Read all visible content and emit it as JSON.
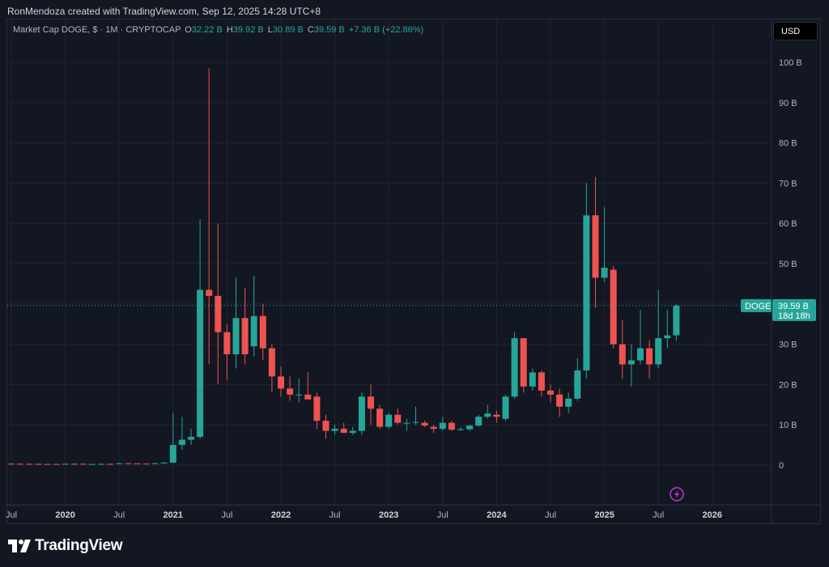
{
  "header": {
    "byline": "RonMendoza created with TradingView.com, Sep 12, 2025 14:28 UTC+8"
  },
  "legend": {
    "symbol": "Market Cap DOGE, $ · 1M · CRYPTOCAP",
    "o_label": "O",
    "o_value": "32.22 B",
    "h_label": "H",
    "h_value": "39.92 B",
    "l_label": "L",
    "l_value": "30.89 B",
    "c_label": "C",
    "c_value": "39.59 B",
    "change": "+7.36 B (+22.86%)"
  },
  "currency_button": "USD",
  "price_tag": {
    "name": "DOGE",
    "value": "39.59 B",
    "countdown": "18d 18h"
  },
  "brand": "TradingView",
  "colors": {
    "background": "#131722",
    "grid": "#1f2330",
    "up": "#26a69a",
    "down": "#ef5350",
    "text": "#b2b5be",
    "lightning": "#c23bd4"
  },
  "chart_data": {
    "type": "candlestick",
    "title": "Market Cap DOGE, $ · 1M · CRYPTOCAP",
    "y_unit": "B (USD billions)",
    "y_ticks": [
      0,
      10,
      20,
      30,
      40,
      50,
      60,
      70,
      80,
      90,
      100
    ],
    "y_tick_labels": [
      "0",
      "10 B",
      "20 B",
      "30 B",
      "40 B",
      "50 B",
      "60 B",
      "70 B",
      "80 B",
      "90 B",
      "100 B"
    ],
    "ylim": [
      -10,
      110
    ],
    "x_ticks": [
      {
        "label": "Jul",
        "date": "2019-07",
        "bold": false
      },
      {
        "label": "2020",
        "date": "2020-01",
        "bold": true
      },
      {
        "label": "Jul",
        "date": "2020-07",
        "bold": false
      },
      {
        "label": "2021",
        "date": "2021-01",
        "bold": true
      },
      {
        "label": "Jul",
        "date": "2021-07",
        "bold": false
      },
      {
        "label": "2022",
        "date": "2022-01",
        "bold": true
      },
      {
        "label": "Jul",
        "date": "2022-07",
        "bold": false
      },
      {
        "label": "2023",
        "date": "2023-01",
        "bold": true
      },
      {
        "label": "Jul",
        "date": "2023-07",
        "bold": false
      },
      {
        "label": "2024",
        "date": "2024-01",
        "bold": true
      },
      {
        "label": "Jul",
        "date": "2024-07",
        "bold": false
      },
      {
        "label": "2025",
        "date": "2025-01",
        "bold": true
      },
      {
        "label": "Jul",
        "date": "2025-07",
        "bold": false
      },
      {
        "label": "2026",
        "date": "2026-01",
        "bold": true
      }
    ],
    "xlim": [
      "2019-07",
      "2026-07"
    ],
    "grid": true,
    "current_price_line": 39.59,
    "candles": [
      {
        "date": "2019-07",
        "o": 0.35,
        "h": 0.4,
        "l": 0.3,
        "c": 0.33
      },
      {
        "date": "2019-08",
        "o": 0.33,
        "h": 0.37,
        "l": 0.3,
        "c": 0.32
      },
      {
        "date": "2019-09",
        "o": 0.32,
        "h": 0.35,
        "l": 0.28,
        "c": 0.3
      },
      {
        "date": "2019-10",
        "o": 0.3,
        "h": 0.33,
        "l": 0.27,
        "c": 0.29
      },
      {
        "date": "2019-11",
        "o": 0.29,
        "h": 0.32,
        "l": 0.26,
        "c": 0.28
      },
      {
        "date": "2019-12",
        "o": 0.28,
        "h": 0.3,
        "l": 0.24,
        "c": 0.26
      },
      {
        "date": "2020-01",
        "o": 0.26,
        "h": 0.35,
        "l": 0.25,
        "c": 0.33
      },
      {
        "date": "2020-02",
        "o": 0.33,
        "h": 0.45,
        "l": 0.32,
        "c": 0.32
      },
      {
        "date": "2020-03",
        "o": 0.32,
        "h": 0.33,
        "l": 0.2,
        "c": 0.25
      },
      {
        "date": "2020-04",
        "o": 0.25,
        "h": 0.3,
        "l": 0.23,
        "c": 0.28
      },
      {
        "date": "2020-05",
        "o": 0.28,
        "h": 0.32,
        "l": 0.26,
        "c": 0.31
      },
      {
        "date": "2020-06",
        "o": 0.31,
        "h": 0.35,
        "l": 0.29,
        "c": 0.3
      },
      {
        "date": "2020-07",
        "o": 0.3,
        "h": 0.55,
        "l": 0.29,
        "c": 0.45
      },
      {
        "date": "2020-08",
        "o": 0.45,
        "h": 0.5,
        "l": 0.38,
        "c": 0.4
      },
      {
        "date": "2020-09",
        "o": 0.4,
        "h": 0.42,
        "l": 0.33,
        "c": 0.36
      },
      {
        "date": "2020-10",
        "o": 0.36,
        "h": 0.4,
        "l": 0.33,
        "c": 0.34
      },
      {
        "date": "2020-11",
        "o": 0.34,
        "h": 0.55,
        "l": 0.33,
        "c": 0.45
      },
      {
        "date": "2020-12",
        "o": 0.45,
        "h": 0.8,
        "l": 0.4,
        "c": 0.6
      },
      {
        "date": "2021-01",
        "o": 0.6,
        "h": 13.0,
        "l": 0.5,
        "c": 5.0
      },
      {
        "date": "2021-02",
        "o": 5.0,
        "h": 12.0,
        "l": 3.8,
        "c": 6.3
      },
      {
        "date": "2021-03",
        "o": 6.3,
        "h": 9.0,
        "l": 5.0,
        "c": 7.0
      },
      {
        "date": "2021-04",
        "o": 7.0,
        "h": 61.0,
        "l": 6.5,
        "c": 43.5
      },
      {
        "date": "2021-05",
        "o": 43.5,
        "h": 98.5,
        "l": 25.0,
        "c": 42.0
      },
      {
        "date": "2021-06",
        "o": 42.0,
        "h": 60.0,
        "l": 20.0,
        "c": 33.0
      },
      {
        "date": "2021-07",
        "o": 33.0,
        "h": 35.0,
        "l": 21.0,
        "c": 27.5
      },
      {
        "date": "2021-08",
        "o": 27.5,
        "h": 46.5,
        "l": 24.0,
        "c": 36.5
      },
      {
        "date": "2021-09",
        "o": 36.5,
        "h": 44.0,
        "l": 25.0,
        "c": 27.5
      },
      {
        "date": "2021-10",
        "o": 29.5,
        "h": 47.0,
        "l": 27.0,
        "c": 37.0
      },
      {
        "date": "2021-11",
        "o": 37.0,
        "h": 40.0,
        "l": 26.0,
        "c": 29.0
      },
      {
        "date": "2021-12",
        "o": 29.0,
        "h": 30.0,
        "l": 18.0,
        "c": 22.0
      },
      {
        "date": "2022-01",
        "o": 22.0,
        "h": 24.5,
        "l": 17.0,
        "c": 19.0
      },
      {
        "date": "2022-02",
        "o": 19.0,
        "h": 22.0,
        "l": 16.0,
        "c": 17.5
      },
      {
        "date": "2022-03",
        "o": 17.5,
        "h": 21.5,
        "l": 15.5,
        "c": 17.5
      },
      {
        "date": "2022-04",
        "o": 17.5,
        "h": 23.0,
        "l": 16.5,
        "c": 16.3
      },
      {
        "date": "2022-05",
        "o": 17.0,
        "h": 18.0,
        "l": 9.0,
        "c": 11.0
      },
      {
        "date": "2022-06",
        "o": 11.0,
        "h": 12.5,
        "l": 6.5,
        "c": 8.5
      },
      {
        "date": "2022-07",
        "o": 8.5,
        "h": 10.0,
        "l": 7.5,
        "c": 9.0
      },
      {
        "date": "2022-08",
        "o": 9.0,
        "h": 10.5,
        "l": 8.0,
        "c": 8.0
      },
      {
        "date": "2022-09",
        "o": 8.0,
        "h": 9.5,
        "l": 7.5,
        "c": 8.5
      },
      {
        "date": "2022-10",
        "o": 8.5,
        "h": 18.0,
        "l": 7.5,
        "c": 17.0
      },
      {
        "date": "2022-11",
        "o": 17.0,
        "h": 20.0,
        "l": 10.0,
        "c": 14.0
      },
      {
        "date": "2022-12",
        "o": 14.0,
        "h": 15.0,
        "l": 9.0,
        "c": 9.5
      },
      {
        "date": "2023-01",
        "o": 9.5,
        "h": 13.0,
        "l": 9.0,
        "c": 12.5
      },
      {
        "date": "2023-02",
        "o": 12.5,
        "h": 14.0,
        "l": 10.0,
        "c": 10.5
      },
      {
        "date": "2023-03",
        "o": 10.5,
        "h": 11.5,
        "l": 8.5,
        "c": 10.5
      },
      {
        "date": "2023-04",
        "o": 10.5,
        "h": 14.5,
        "l": 10.0,
        "c": 10.7
      },
      {
        "date": "2023-05",
        "o": 10.5,
        "h": 11.0,
        "l": 9.5,
        "c": 9.8
      },
      {
        "date": "2023-06",
        "o": 9.5,
        "h": 10.0,
        "l": 8.0,
        "c": 9.0
      },
      {
        "date": "2023-07",
        "o": 9.0,
        "h": 12.0,
        "l": 8.5,
        "c": 10.5
      },
      {
        "date": "2023-08",
        "o": 10.5,
        "h": 11.0,
        "l": 8.5,
        "c": 8.8
      },
      {
        "date": "2023-09",
        "o": 8.8,
        "h": 9.5,
        "l": 8.5,
        "c": 8.9
      },
      {
        "date": "2023-10",
        "o": 8.9,
        "h": 10.0,
        "l": 8.5,
        "c": 9.8
      },
      {
        "date": "2023-11",
        "o": 9.8,
        "h": 12.5,
        "l": 9.5,
        "c": 12.0
      },
      {
        "date": "2023-12",
        "o": 12.0,
        "h": 15.0,
        "l": 11.5,
        "c": 12.8
      },
      {
        "date": "2024-01",
        "o": 12.5,
        "h": 13.5,
        "l": 10.5,
        "c": 12.0
      },
      {
        "date": "2024-02",
        "o": 11.5,
        "h": 17.5,
        "l": 11.0,
        "c": 17.0
      },
      {
        "date": "2024-03",
        "o": 17.0,
        "h": 33.0,
        "l": 16.5,
        "c": 31.5
      },
      {
        "date": "2024-04",
        "o": 31.5,
        "h": 31.5,
        "l": 18.0,
        "c": 19.5
      },
      {
        "date": "2024-05",
        "o": 19.5,
        "h": 24.0,
        "l": 18.5,
        "c": 23.0
      },
      {
        "date": "2024-06",
        "o": 23.0,
        "h": 23.5,
        "l": 17.0,
        "c": 18.5
      },
      {
        "date": "2024-07",
        "o": 18.5,
        "h": 20.0,
        "l": 15.5,
        "c": 17.5
      },
      {
        "date": "2024-08",
        "o": 17.5,
        "h": 19.0,
        "l": 12.0,
        "c": 14.5
      },
      {
        "date": "2024-09",
        "o": 14.5,
        "h": 18.0,
        "l": 13.0,
        "c": 16.5
      },
      {
        "date": "2024-10",
        "o": 16.5,
        "h": 26.5,
        "l": 16.0,
        "c": 23.5
      },
      {
        "date": "2024-11",
        "o": 23.5,
        "h": 70.0,
        "l": 21.5,
        "c": 62.0
      },
      {
        "date": "2024-12",
        "o": 62.0,
        "h": 71.5,
        "l": 39.0,
        "c": 46.5
      },
      {
        "date": "2025-01",
        "o": 46.5,
        "h": 64.0,
        "l": 45.5,
        "c": 49.0
      },
      {
        "date": "2025-02",
        "o": 48.5,
        "h": 49.5,
        "l": 29.0,
        "c": 30.0
      },
      {
        "date": "2025-03",
        "o": 30.0,
        "h": 36.0,
        "l": 21.5,
        "c": 25.0
      },
      {
        "date": "2025-04",
        "o": 25.0,
        "h": 30.0,
        "l": 19.5,
        "c": 26.0
      },
      {
        "date": "2025-05",
        "o": 26.0,
        "h": 38.5,
        "l": 25.0,
        "c": 29.0
      },
      {
        "date": "2025-06",
        "o": 29.0,
        "h": 31.0,
        "l": 21.5,
        "c": 25.0
      },
      {
        "date": "2025-07",
        "o": 25.0,
        "h": 43.5,
        "l": 24.0,
        "c": 31.5
      },
      {
        "date": "2025-08",
        "o": 31.5,
        "h": 38.5,
        "l": 29.0,
        "c": 32.2
      },
      {
        "date": "2025-09",
        "o": 32.22,
        "h": 39.92,
        "l": 30.89,
        "c": 39.59
      }
    ]
  }
}
